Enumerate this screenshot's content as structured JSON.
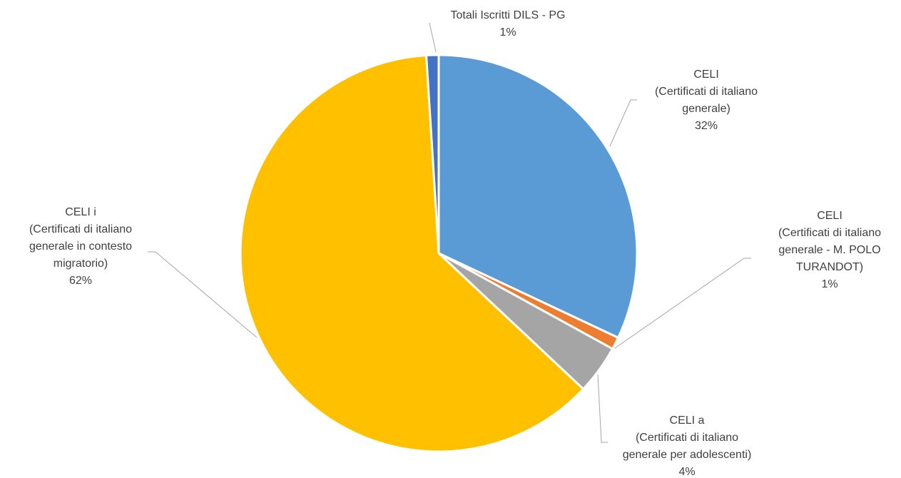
{
  "chart_data": {
    "type": "pie",
    "categories": [
      "CELI\n(Certificati di italiano\ngenerale)",
      "CELI\n(Certificati di italiano\ngenerale - M. POLO\nTURANDOT)",
      "CELI a\n(Certificati di italiano\ngenerale per adolescenti)",
      "CELI i\n(Certificati di italiano\ngenerale in contesto\nmigratorio)",
      "Totali Iscritti DILS - PG"
    ],
    "values": [
      32,
      1,
      4,
      62,
      1
    ],
    "value_labels": [
      "32%",
      "1%",
      "4%",
      "62%",
      "1%"
    ],
    "colors": [
      "#5b9bd5",
      "#ed7d31",
      "#a5a5a5",
      "#ffc000",
      "#4472c4"
    ]
  }
}
